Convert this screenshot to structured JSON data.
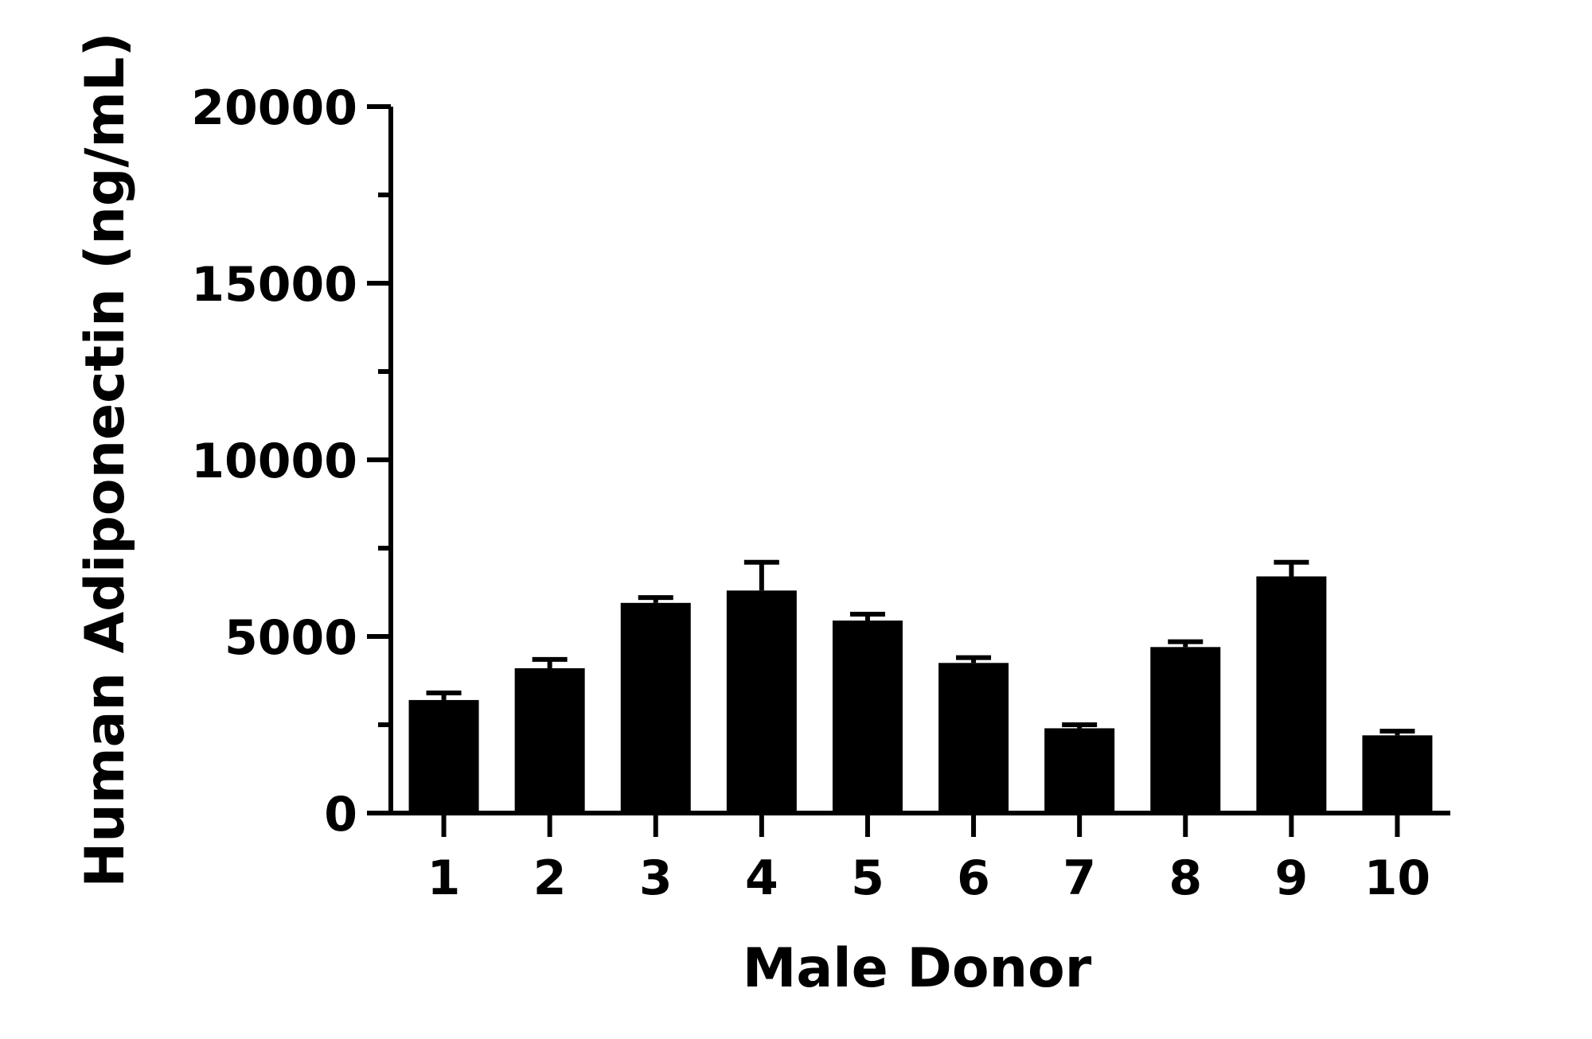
{
  "chart_data": {
    "type": "bar",
    "title": "",
    "xlabel": "Male Donor",
    "ylabel": "Human Adiponectin (ng/mL)",
    "categories": [
      "1",
      "2",
      "3",
      "4",
      "5",
      "6",
      "7",
      "8",
      "9",
      "10"
    ],
    "values": [
      3200,
      4100,
      5950,
      6300,
      5450,
      4250,
      2400,
      4700,
      6700,
      2200
    ],
    "errors": [
      200,
      250,
      150,
      800,
      180,
      150,
      100,
      150,
      400,
      120
    ],
    "ylim": [
      0,
      20000
    ],
    "yticks": [
      0,
      5000,
      10000,
      15000,
      20000
    ],
    "ytick_labels": [
      "0",
      "5000",
      "10000",
      "15000",
      "20000"
    ],
    "y_minor_ticks": [
      2500,
      7500,
      12500,
      17500
    ],
    "grid": false,
    "legend": "none",
    "bar_color": "#000000"
  }
}
